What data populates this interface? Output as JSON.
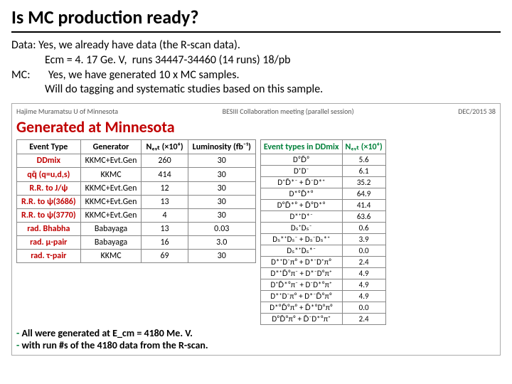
{
  "title": "Is MC production ready?",
  "intro": {
    "l1": "Data: Yes, we already have data (the R-scan data).",
    "l2": "             Ecm = 4. 17 Ge. V,  runs 34447-34460 (14 runs) 18/pb",
    "l3": "MC:       Yes, we have generated 10 x MC samples.",
    "l4": "             Will do tagging and systematic studies based on this sample."
  },
  "slide": {
    "hdr_left": "Hajime Muramatsu   U of Minnesota",
    "hdr_mid": "BESIII Collaboration meeting (parallel session)",
    "hdr_right": "DEC/2015  38",
    "gen_title": "Generated at Minnesota",
    "gen_title_color": "#c00000",
    "t1": {
      "headers": [
        "Event Type",
        "Generator",
        "Nₑᵥₜ (×10⁶)",
        "Luminosity (fb⁻¹)"
      ],
      "label_color": "#c00000",
      "rows": [
        {
          "label": "DDmix",
          "gen": "KKMC+Evt.Gen",
          "nevt": "260",
          "lum": "30"
        },
        {
          "label": "qq̄ (q=u,d,s)",
          "gen": "KKMC",
          "nevt": "414",
          "lum": "30"
        },
        {
          "label": "R.R. to J/ψ",
          "gen": "KKMC+Evt.Gen",
          "nevt": "12",
          "lum": "30"
        },
        {
          "label": "R.R. to ψ(3686)",
          "gen": "KKMC+Evt.Gen",
          "nevt": "13",
          "lum": "30"
        },
        {
          "label": "R.R. to ψ(3770)",
          "gen": "KKMC+Evt.Gen",
          "nevt": "4",
          "lum": "30"
        },
        {
          "label": "rad. Bhabha",
          "gen": "Babayaga",
          "nevt": "13",
          "lum": "0.03"
        },
        {
          "label": "rad. μ-pair",
          "gen": "Babayaga",
          "nevt": "16",
          "lum": "3.0"
        },
        {
          "label": "rad. τ-pair",
          "gen": "KKMC",
          "nevt": "69",
          "lum": "30"
        }
      ]
    },
    "t2": {
      "headers": [
        "Event types in DDmix",
        "Nₑᵥₜ (×10⁶)"
      ],
      "header_color": "#00803a",
      "rows": [
        {
          "label": "D⁰D̄⁰",
          "n": "5.6"
        },
        {
          "label": "D⁺D⁻",
          "n": "6.1"
        },
        {
          "label": "D⁺D̄*⁻ + D̄⁻D*⁺",
          "n": "35.2"
        },
        {
          "label": "D*⁰D̄*⁰",
          "n": "64.9"
        },
        {
          "label": "D⁰D̄*⁰ + D̄⁰D*⁰",
          "n": "41.4"
        },
        {
          "label": "D*⁺D*⁻",
          "n": "63.6"
        },
        {
          "label": "Dₛ⁺Dₛ⁻",
          "n": "0.6"
        },
        {
          "label": "Dₛ*⁺Dₛ⁻ + Dₛ⁻Dₛ*⁺",
          "n": "3.9"
        },
        {
          "label": "Dₛ*⁺Dₛ*⁻",
          "n": "0.0"
        },
        {
          "label": "D*⁺D⁻π⁰ + D*⁻D⁺π⁰",
          "n": "2.4"
        },
        {
          "label": "D*⁺D̄⁰π⁻ + D*⁻D⁰π⁺",
          "n": "4.9"
        },
        {
          "label": "D⁺D̄*⁰π⁻ + D⁻D*⁰π⁺",
          "n": "4.9"
        },
        {
          "label": "D*⁺D⁻π⁰ + D*⁻D̄⁰π⁰",
          "n": "4.9"
        },
        {
          "label": "D*⁰D̄⁰π⁰ + D̄*⁰D⁰π⁰",
          "n": "0.0"
        },
        {
          "label": "D⁰D̄⁰π⁰ + D̄⁻D*⁰π⁺",
          "n": "2.4"
        }
      ]
    },
    "notes": {
      "n1": "All were generated at E_cm = 4180 Me. V.",
      "n2": "with run #s of the 4180 data from the R-scan."
    }
  }
}
